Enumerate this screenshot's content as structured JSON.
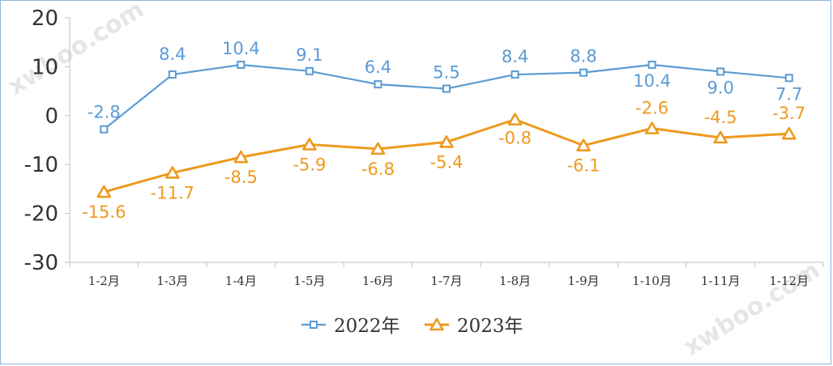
{
  "watermarks": [
    "xwboo.com",
    "xwboo.com"
  ],
  "chart_data": {
    "type": "line",
    "categories": [
      "1-2月",
      "1-3月",
      "1-4月",
      "1-5月",
      "1-6月",
      "1-7月",
      "1-8月",
      "1-9月",
      "1-10月",
      "1-11月",
      "1-12月"
    ],
    "ylim": [
      -30,
      20
    ],
    "yticks": [
      20,
      10,
      0,
      -10,
      -20,
      -30
    ],
    "ytick_labels": [
      "20",
      "10",
      "0",
      "-10",
      "-20",
      "-30"
    ],
    "grid": false,
    "legend_position": "bottom",
    "series": [
      {
        "name": "2022年",
        "color": "#5b9bd5",
        "marker": "square",
        "values": [
          -2.8,
          8.4,
          10.4,
          9.1,
          6.4,
          5.5,
          8.4,
          8.8,
          10.4,
          9.0,
          7.7
        ],
        "labels": [
          "-2.8",
          "8.4",
          "10.4",
          "9.1",
          "6.4",
          "5.5",
          "8.4",
          "8.8",
          "10.4",
          "9.0",
          "7.7"
        ]
      },
      {
        "name": "2023年",
        "color": "#ed9a1e",
        "marker": "triangle",
        "values": [
          -15.6,
          -11.7,
          -8.5,
          -5.9,
          -6.8,
          -5.4,
          -0.8,
          -6.1,
          -2.6,
          -4.5,
          -3.7
        ],
        "labels": [
          "-15.6",
          "-11.7",
          "-8.5",
          "-5.9",
          "-6.8",
          "-5.4",
          "-0.8",
          "-6.1",
          "-2.6",
          "-4.5",
          "-3.7"
        ]
      }
    ]
  }
}
